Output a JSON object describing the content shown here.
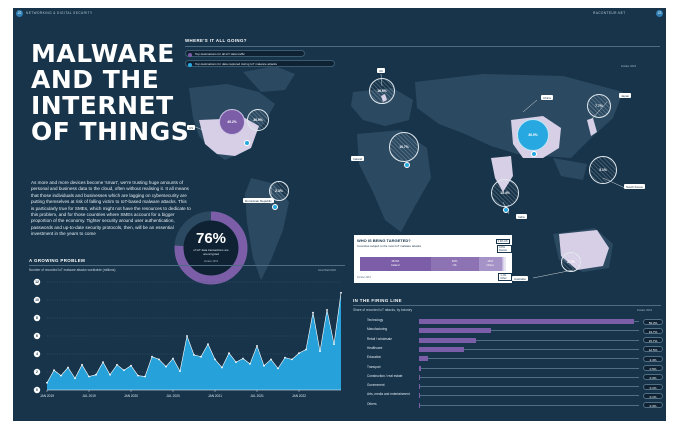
{
  "page": {
    "left_number": "22",
    "left_header": "NETWORKING & DIGITAL SECURITY",
    "right_header": "RACONTEUR.NET",
    "right_number": "23"
  },
  "title_lines": [
    "MALWARE",
    "AND THE",
    "INTERNET",
    "OF THINGS"
  ],
  "intro": "As more and more devices become 'smart', we're trusting huge amounts of personal and business data to the cloud, often without realising it. It all means that those individuals and businesses which are lagging on cybersecurity are putting themselves at risk of falling victim to IoT-based malware attacks. This is particularly true for SMEs, which might not have the resources to dedicate to this problem, and for those countries where SMEs account for a bigger proportion of the economy. Tighter security around user authentication, passwords and up-to-date security protocols, then, will be an essential investment in the years to come",
  "donut": {
    "value": 76,
    "value_label": "76%",
    "caption": "of IoT data transactions are unencrypted",
    "source": "Zscaler 2019",
    "color_fill": "#7b5ea7",
    "color_track": "#2b4a62"
  },
  "map_section": {
    "heading": "WHERE'S IT ALL GOING?",
    "source": "Zscaler 2019",
    "legend": [
      {
        "label": "Top destinations for all IoT data traffic",
        "color": "#7b5ea7"
      },
      {
        "label": "Top destinations for data captured during IoT malware attacks",
        "color": "#27a8e0"
      }
    ],
    "labels": [
      "UK",
      "US",
      "Dominican Republic",
      "Ireland",
      "China",
      "Japan",
      "India",
      "South Korea",
      "Australia"
    ],
    "bubbles": [
      {
        "name": "us",
        "value": "49.2%",
        "style": "purple"
      },
      {
        "name": "us-malware",
        "value": "36.9%",
        "style": "hatch"
      },
      {
        "name": "dominican-republic",
        "value": "2.3%",
        "style": "hatch"
      },
      {
        "name": "uk",
        "value": "16.6%",
        "style": "hatch"
      },
      {
        "name": "ireland",
        "value": "10.7%",
        "style": "hatch"
      },
      {
        "name": "china",
        "value": "36.9%",
        "style": "blue"
      },
      {
        "name": "india",
        "value": "15.4%",
        "style": "hatch"
      },
      {
        "name": "japan",
        "value": "7.7%",
        "style": "hatch"
      },
      {
        "name": "south-korea",
        "value": "3.1%",
        "style": "hatch"
      },
      {
        "name": "australia",
        "value": "2.7%",
        "style": "hatch"
      }
    ]
  },
  "who_targeted": {
    "title": "WHO IS BEING TARGETED?",
    "subtitle": "Countries subject to the most IoT malware attacks",
    "source": "Zscaler 2019",
    "segments": [
      {
        "value": "48.6%",
        "label": "Ireland",
        "share": 48.6,
        "color": "#7b5ea7"
      },
      {
        "value": "33%",
        "label": "US",
        "share": 33,
        "color": "#8d73b4"
      },
      {
        "value": "16%",
        "label": "China",
        "share": 16,
        "color": "#a592c6"
      },
      {
        "value": "0.9%",
        "label": "UK",
        "share": 0.9,
        "color": "#c3b6dc"
      },
      {
        "value": "0.9%",
        "label": "Russia",
        "share": 0.9,
        "color": "#d9d0ea"
      },
      {
        "value": "1.1%",
        "label": "Other",
        "share": 1.1,
        "color": "#e9e4f2"
      }
    ]
  },
  "growing": {
    "heading": "A GROWING PROBLEM",
    "subtitle": "Number of recorded IoT malware attacks worldwide (millions)",
    "source": "SonicWall 2020"
  },
  "firing_line": {
    "heading": "IN THE FIRING LINE",
    "subtitle": "Share of recorded IoT attacks, by industry",
    "source": "Zscaler 2019",
    "rows": [
      {
        "label": "Technology",
        "value": 59.3,
        "value_label": "59.3%"
      },
      {
        "label": "Manufacturing",
        "value": 19.7,
        "value_label": "19.7%"
      },
      {
        "label": "Retail / wholesale",
        "value": 15.7,
        "value_label": "15.7%"
      },
      {
        "label": "Healthcare",
        "value": 12.5,
        "value_label": "12.5%"
      },
      {
        "label": "Education",
        "value": 2.4,
        "value_label": "2.4%"
      },
      {
        "label": "Transport",
        "value": 0.5,
        "value_label": "0.5%"
      },
      {
        "label": "Construction / real estate",
        "value": 0.3,
        "value_label": "0.3%"
      },
      {
        "label": "Government",
        "value": 0.1,
        "value_label": "0.1%"
      },
      {
        "label": "Arts, media and entertainment",
        "value": 0.1,
        "value_label": "0.1%"
      },
      {
        "label": "Others",
        "value": 0.3,
        "value_label": "0.3%"
      }
    ]
  },
  "chart_data": {
    "type": "area",
    "title": "A GROWING PROBLEM",
    "subtitle": "Number of recorded IoT malware attacks worldwide (millions)",
    "xlabel": "",
    "ylabel": "",
    "ylim": [
      0,
      12
    ],
    "yticks": [
      0,
      2,
      4,
      6,
      8,
      10,
      12
    ],
    "x_tick_labels": [
      "JAN 2019",
      "JUL 2019",
      "JAN 2020",
      "JUL 2020",
      "JAN 2021",
      "JUL 2021",
      "JAN 2022"
    ],
    "x_tick_index": [
      0,
      6,
      12,
      18,
      24,
      30,
      36
    ],
    "grid": true,
    "color": "#27a8e0",
    "values": [
      0.8,
      2.2,
      1.6,
      2.5,
      1.3,
      2.8,
      1.5,
      1.7,
      3.1,
      1.7,
      2.8,
      2.2,
      2.7,
      1.6,
      1.5,
      3.7,
      3.4,
      2.6,
      3.5,
      2.1,
      6.0,
      3.9,
      3.7,
      5.1,
      3.4,
      2.5,
      4.1,
      3.1,
      3.5,
      2.9,
      4.9,
      2.7,
      3.4,
      2.4,
      3.6,
      3.4,
      4.1,
      4.5,
      8.6,
      4.3,
      8.9,
      5.1,
      10.8
    ]
  }
}
